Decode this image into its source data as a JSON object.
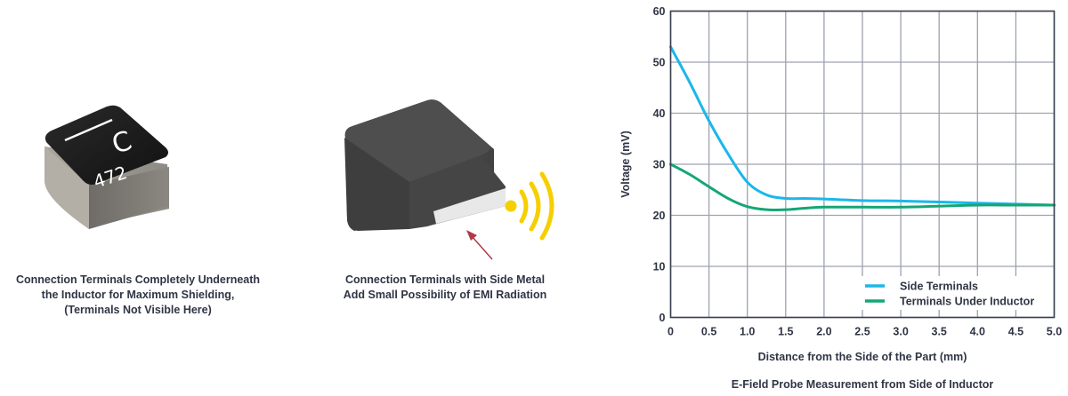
{
  "figure": {
    "left_caption": [
      "Connection Terminals Completely Underneath",
      "the Inductor for Maximum Shielding,",
      "(Terminals Not Visible Here)"
    ],
    "right_caption": [
      "Connection Terminals with Side Metal",
      "Add Small Possibility of EMI Radiation"
    ],
    "inductor_marking": {
      "letter": "C",
      "code": "472"
    },
    "icons": [
      "inductor-shielded-image",
      "inductor-side-terminal-image",
      "radiation-wave-icon",
      "arrow-icon"
    ]
  },
  "chart_data": {
    "type": "line",
    "title": "E-Field Probe Measurement from Side of Inductor",
    "xlabel": "Distance from the Side of the Part (mm)",
    "ylabel": "Voltage (mV)",
    "xlim": [
      0,
      5.0
    ],
    "ylim": [
      0,
      60
    ],
    "xticks": [
      "0",
      "0.5",
      "1.0",
      "1.5",
      "2.0",
      "2.5",
      "3.0",
      "3.5",
      "4.0",
      "4.5",
      "5.0"
    ],
    "yticks": [
      "0",
      "10",
      "20",
      "30",
      "40",
      "50",
      "60"
    ],
    "grid": true,
    "legend_placement": "bottom-right",
    "x": [
      0,
      0.25,
      0.5,
      0.75,
      1.0,
      1.25,
      1.5,
      1.75,
      2.0,
      2.5,
      3.0,
      3.5,
      4.0,
      4.5,
      5.0
    ],
    "series": [
      {
        "name": "Side Terminals",
        "color": "#1ab7ea",
        "values": [
          53,
          46,
          38.5,
          32,
          26.5,
          24,
          23.3,
          23.3,
          23.2,
          22.9,
          22.8,
          22.6,
          22.4,
          22.2,
          22.0
        ]
      },
      {
        "name": "Terminals Under Inductor",
        "color": "#14a676",
        "values": [
          30,
          28,
          25.6,
          23.3,
          21.7,
          21.1,
          21.1,
          21.4,
          21.6,
          21.6,
          21.6,
          21.8,
          22.0,
          22.0,
          22.0
        ]
      }
    ]
  }
}
